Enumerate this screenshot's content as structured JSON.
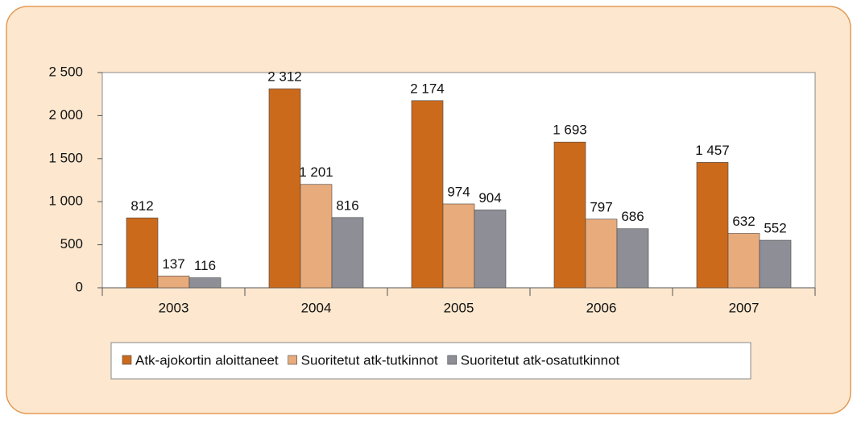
{
  "chart_data": {
    "type": "bar",
    "categories": [
      "2003",
      "2004",
      "2005",
      "2006",
      "2007"
    ],
    "series": [
      {
        "name": "Atk-ajokortin aloittaneet",
        "color": "#cc6a1c",
        "values": [
          812,
          2312,
          2174,
          1693,
          1457
        ],
        "value_labels": [
          "812",
          "2 312",
          "2 174",
          "1 693",
          "1 457"
        ]
      },
      {
        "name": "Suoritetut atk-tutkinnot",
        "color": "#e8ab7c",
        "values": [
          137,
          1201,
          974,
          797,
          632
        ],
        "value_labels": [
          "137",
          "1 201",
          "974",
          "797",
          "632"
        ]
      },
      {
        "name": "Suoritetut atk-osatutkinnot",
        "color": "#8e8f96",
        "values": [
          116,
          816,
          904,
          686,
          552
        ],
        "value_labels": [
          "116",
          "816",
          "904",
          "686",
          "552"
        ]
      }
    ],
    "ylim": [
      0,
      2500
    ],
    "yticks": [
      0,
      500,
      {
        "value": 1000,
        "label": "1 000"
      },
      {
        "value": 1500,
        "label": "1 500"
      },
      {
        "value": 2000,
        "label": "2 000"
      },
      {
        "value": 2500,
        "label": "2 500"
      }
    ],
    "grid": false,
    "legend": "bottom"
  }
}
